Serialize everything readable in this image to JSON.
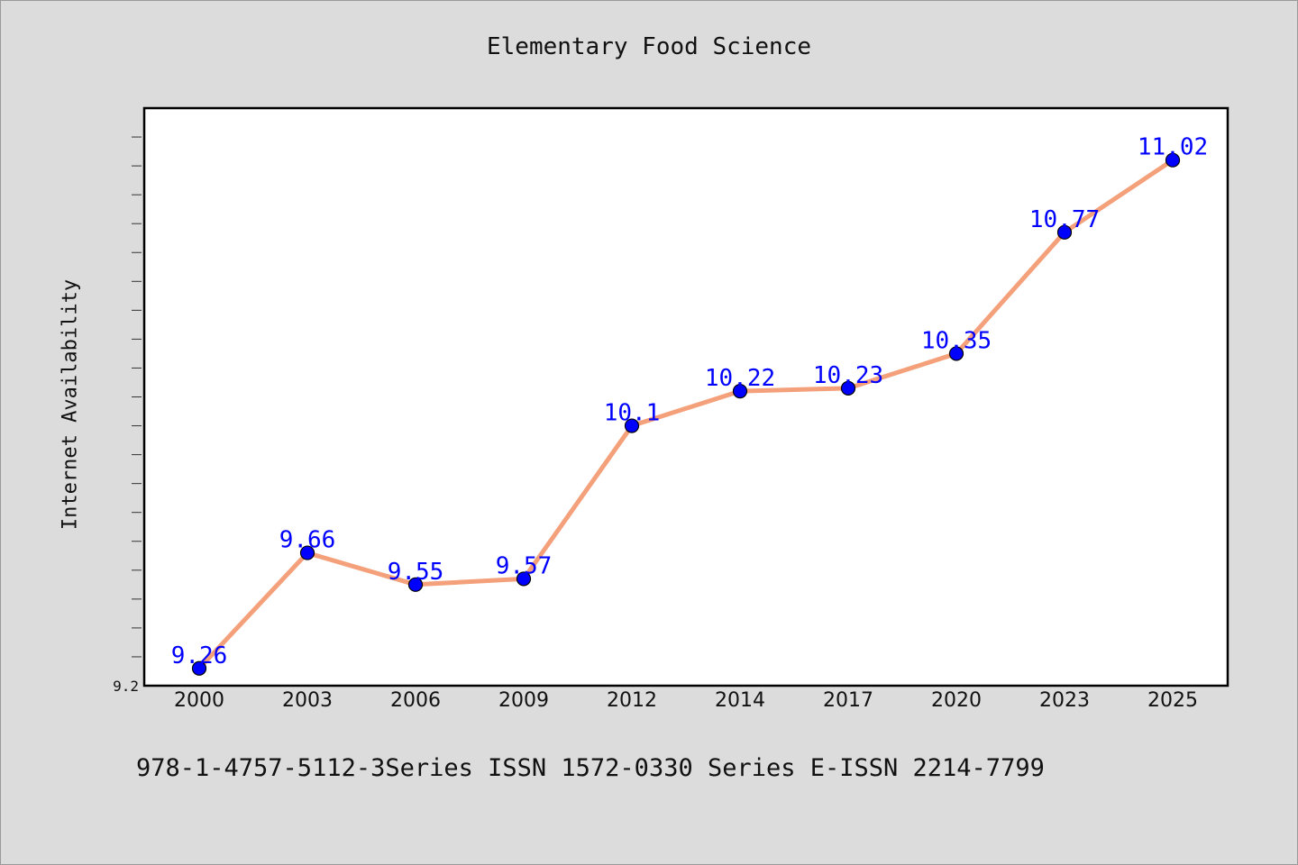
{
  "chart_data": {
    "type": "line",
    "title": "Elementary Food Science",
    "xlabel": "",
    "ylabel": "Internet Availability",
    "categories": [
      "2000",
      "2003",
      "2006",
      "2009",
      "2012",
      "2014",
      "2017",
      "2020",
      "2023",
      "2025"
    ],
    "series": [
      {
        "values": [
          9.26,
          9.66,
          9.55,
          9.57,
          10.1,
          10.22,
          10.23,
          10.35,
          10.77,
          11.02
        ],
        "line_color": "#f4a07a",
        "marker_color": "#0000ff"
      }
    ],
    "data_labels": [
      "9.26",
      "9.66",
      "9.55",
      "9.57",
      "10.1",
      "10.22",
      "10.23",
      "10.35",
      "10.77",
      "11.02"
    ],
    "ylim": [
      9.2,
      11.2
    ],
    "ytick_labels": [
      {
        "value": 9.2,
        "text": "9.2"
      }
    ],
    "grid": false,
    "label_color": "#0000ff"
  },
  "footer": "978-1-4757-5112-3Series ISSN 1572-0330 Series E-ISSN 2214-7799"
}
